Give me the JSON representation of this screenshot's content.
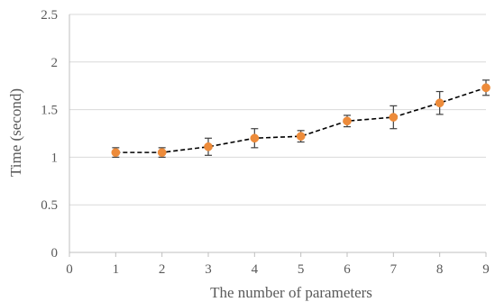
{
  "chart_data": {
    "type": "line",
    "title": "",
    "xlabel": "The number of parameters",
    "ylabel": "Time (second)",
    "xlim": [
      0,
      9
    ],
    "ylim": [
      0,
      2.5
    ],
    "x_ticks": [
      "0",
      "1",
      "2",
      "3",
      "4",
      "5",
      "6",
      "7",
      "8",
      "9"
    ],
    "y_ticks": [
      "0",
      "0.5",
      "1",
      "1.5",
      "2",
      "2.5"
    ],
    "grid": "horizontal",
    "legend": "none",
    "series": [
      {
        "x": [
          1,
          2,
          3,
          4,
          5,
          6,
          7,
          8,
          9
        ],
        "values": [
          1.05,
          1.05,
          1.11,
          1.2,
          1.22,
          1.38,
          1.42,
          1.57,
          1.73
        ],
        "error": [
          0.05,
          0.05,
          0.09,
          0.1,
          0.06,
          0.06,
          0.12,
          0.12,
          0.08
        ],
        "line_style": "dashed",
        "line_color": "#000000",
        "marker_color": "#ED8B3A"
      }
    ]
  }
}
